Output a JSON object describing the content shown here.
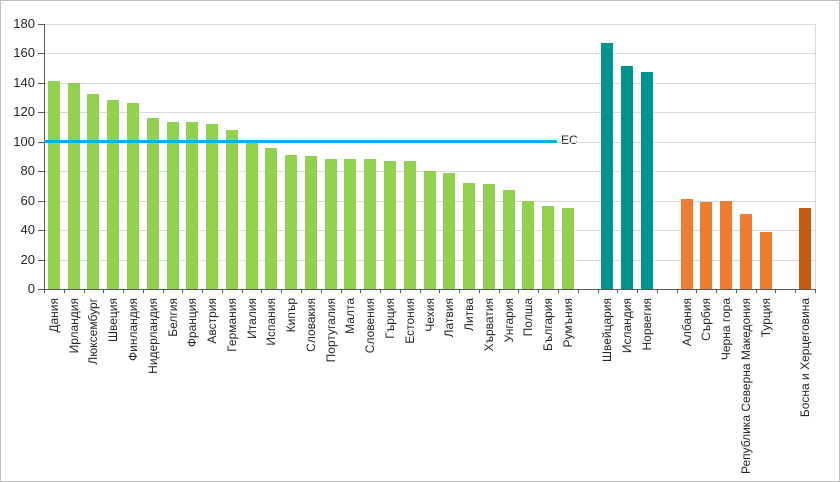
{
  "chart_data": {
    "type": "bar",
    "title": "",
    "ylim": [
      0,
      180
    ],
    "ytick_step": 20,
    "yticks": [
      0,
      20,
      40,
      60,
      80,
      100,
      120,
      140,
      160,
      180
    ],
    "grid": true,
    "reference_line": {
      "label": "ЕС",
      "value": 100,
      "color": "#00B0F0"
    },
    "gap_slots_between_groups": 1,
    "groups": [
      {
        "name": "eu-members",
        "color": "#92D050",
        "items": [
          {
            "label": "Дания",
            "value": 141
          },
          {
            "label": "Ирландия",
            "value": 140
          },
          {
            "label": "Люксембург",
            "value": 132
          },
          {
            "label": "Швеция",
            "value": 128
          },
          {
            "label": "Финландия",
            "value": 126
          },
          {
            "label": "Нидерландия",
            "value": 116
          },
          {
            "label": "Белгия",
            "value": 113
          },
          {
            "label": "Франция",
            "value": 113
          },
          {
            "label": "Австрия",
            "value": 112
          },
          {
            "label": "Германия",
            "value": 108
          },
          {
            "label": "Италия",
            "value": 99
          },
          {
            "label": "Испания",
            "value": 96
          },
          {
            "label": "Кипър",
            "value": 91
          },
          {
            "label": "Словакия",
            "value": 90
          },
          {
            "label": "Португалия",
            "value": 88
          },
          {
            "label": "Малта",
            "value": 88
          },
          {
            "label": "Словения",
            "value": 88
          },
          {
            "label": "Гърция",
            "value": 87
          },
          {
            "label": "Естония",
            "value": 87
          },
          {
            "label": "Чехия",
            "value": 80
          },
          {
            "label": "Латвия",
            "value": 79
          },
          {
            "label": "Литва",
            "value": 72
          },
          {
            "label": "Хърватия",
            "value": 71
          },
          {
            "label": "Унгария",
            "value": 67
          },
          {
            "label": "Полша",
            "value": 60
          },
          {
            "label": "България",
            "value": 56
          },
          {
            "label": "Румъния",
            "value": 55
          }
        ]
      },
      {
        "name": "efta",
        "color": "#00948E",
        "items": [
          {
            "label": "Швейцария",
            "value": 167
          },
          {
            "label": "Исландия",
            "value": 151
          },
          {
            "label": "Норвегия",
            "value": 147
          }
        ]
      },
      {
        "name": "candidates",
        "color": "#ED7D31",
        "items": [
          {
            "label": "Албания",
            "value": 61
          },
          {
            "label": "Сърбия",
            "value": 59
          },
          {
            "label": "Черна гора",
            "value": 60
          },
          {
            "label": "Република Северна Македония",
            "value": 51
          },
          {
            "label": "Турция",
            "value": 39
          }
        ]
      },
      {
        "name": "potential-candidates",
        "color": "#C55A11",
        "items": [
          {
            "label": "Босна и Херцеговина",
            "value": 55
          }
        ]
      }
    ]
  }
}
